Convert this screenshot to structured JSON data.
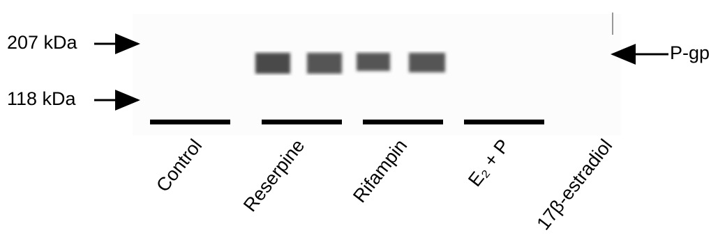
{
  "markers": [
    {
      "label": "207 kDa"
    },
    {
      "label": "118 kDa"
    }
  ],
  "target": {
    "label": "P-gp"
  },
  "lanes": [
    {
      "label": "Control"
    },
    {
      "label": "Reserpine"
    },
    {
      "label": "Rifampin"
    },
    {
      "label": "E₂ + P"
    },
    {
      "label": "17β-estradiol"
    }
  ]
}
